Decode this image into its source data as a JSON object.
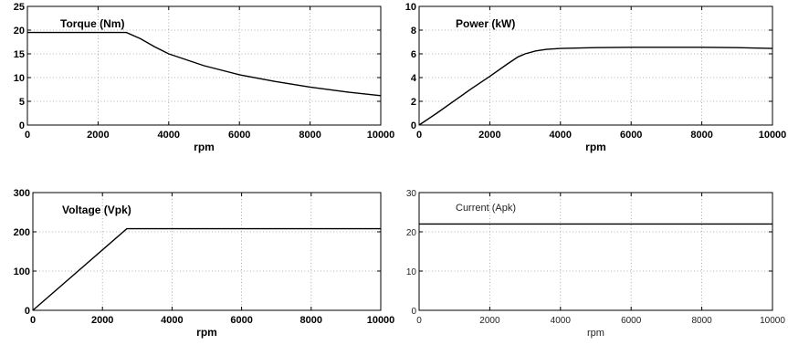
{
  "chart_data": [
    {
      "type": "line",
      "title": "Torque (Nm)",
      "xlabel": "rpm",
      "ylabel": "",
      "xlim": [
        0,
        10000
      ],
      "ylim": [
        0,
        25
      ],
      "xticks": [
        0,
        2000,
        4000,
        6000,
        8000,
        10000
      ],
      "yticks": [
        0,
        5,
        10,
        15,
        20,
        25
      ],
      "grid": true,
      "series": [
        {
          "x": [
            0,
            1000,
            2000,
            2800,
            3200,
            3600,
            4000,
            5000,
            6000,
            7000,
            8000,
            9000,
            10000
          ],
          "y": [
            19.5,
            19.5,
            19.5,
            19.5,
            18.2,
            16.5,
            15.0,
            12.5,
            10.6,
            9.2,
            8.0,
            7.0,
            6.2
          ]
        }
      ]
    },
    {
      "type": "line",
      "title": "Power (kW)",
      "xlabel": "rpm",
      "ylabel": "",
      "xlim": [
        0,
        10000
      ],
      "ylim": [
        0,
        10
      ],
      "xticks": [
        0,
        2000,
        4000,
        6000,
        8000,
        10000
      ],
      "yticks": [
        0,
        2,
        4,
        6,
        8,
        10
      ],
      "grid": true,
      "series": [
        {
          "x": [
            0,
            500,
            1000,
            1500,
            2000,
            2500,
            2800,
            3000,
            3300,
            3600,
            4000,
            5000,
            6000,
            7000,
            8000,
            9000,
            10000
          ],
          "y": [
            0,
            1.0,
            2.05,
            3.1,
            4.1,
            5.15,
            5.75,
            6.0,
            6.25,
            6.38,
            6.45,
            6.52,
            6.55,
            6.55,
            6.55,
            6.52,
            6.45
          ]
        }
      ]
    },
    {
      "type": "line",
      "title": "Voltage (Vpk)",
      "xlabel": "rpm",
      "ylabel": "",
      "xlim": [
        0,
        10000
      ],
      "ylim": [
        0,
        300
      ],
      "xticks": [
        0,
        2000,
        4000,
        6000,
        8000,
        10000
      ],
      "yticks": [
        0,
        100,
        200,
        300
      ],
      "grid": true,
      "series": [
        {
          "x": [
            0,
            2700,
            10000
          ],
          "y": [
            0,
            208,
            208
          ]
        }
      ]
    },
    {
      "type": "line",
      "title": "Current (Apk)",
      "xlabel": "rpm",
      "ylabel": "",
      "xlim": [
        0,
        10000
      ],
      "ylim": [
        0,
        30
      ],
      "xticks": [
        0,
        2000,
        4000,
        6000,
        8000,
        10000
      ],
      "yticks": [
        0,
        10,
        20,
        30
      ],
      "grid": true,
      "series": [
        {
          "x": [
            0,
            10000
          ],
          "y": [
            22,
            22
          ]
        }
      ]
    }
  ]
}
